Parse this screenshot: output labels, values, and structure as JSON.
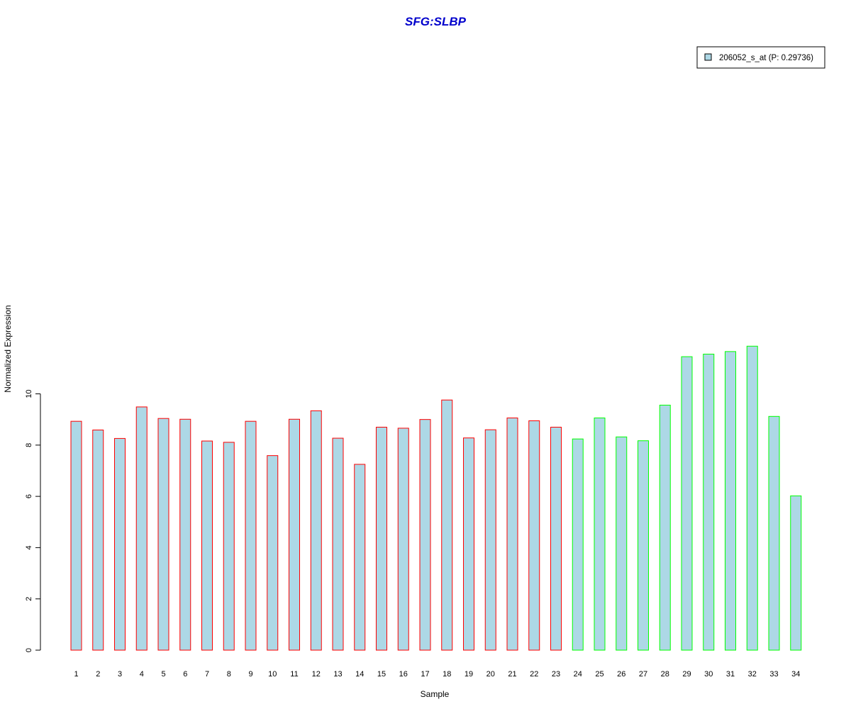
{
  "chart_data": {
    "type": "bar",
    "title": "SFG:SLBP",
    "xlabel": "Sample",
    "ylabel": "Normalized Expression",
    "ylim": [
      0,
      12
    ],
    "yticks": [
      "0",
      "2",
      "4",
      "6",
      "8",
      "10"
    ],
    "categories": [
      "1",
      "2",
      "3",
      "4",
      "5",
      "6",
      "7",
      "8",
      "9",
      "10",
      "11",
      "12",
      "13",
      "14",
      "15",
      "16",
      "17",
      "18",
      "19",
      "20",
      "21",
      "22",
      "23",
      "24",
      "25",
      "26",
      "27",
      "28",
      "29",
      "30",
      "31",
      "32",
      "33",
      "34"
    ],
    "series": [
      {
        "name": "206052_s_at (P: 0.29736)",
        "fill": "#add8e6",
        "values": [
          8.93,
          8.59,
          8.26,
          9.49,
          9.04,
          9.01,
          8.16,
          8.11,
          8.93,
          7.59,
          9.01,
          9.34,
          8.27,
          7.25,
          8.7,
          8.66,
          9.0,
          9.76,
          8.28,
          8.6,
          9.06,
          8.95,
          8.7,
          8.24,
          9.06,
          8.32,
          8.17,
          9.56,
          11.45,
          11.55,
          11.65,
          11.86,
          9.12,
          6.02
        ]
      }
    ],
    "border_colors": [
      "#ff0000",
      "#ff0000",
      "#ff0000",
      "#ff0000",
      "#ff0000",
      "#ff0000",
      "#ff0000",
      "#ff0000",
      "#ff0000",
      "#ff0000",
      "#ff0000",
      "#ff0000",
      "#ff0000",
      "#ff0000",
      "#ff0000",
      "#ff0000",
      "#ff0000",
      "#ff0000",
      "#ff0000",
      "#ff0000",
      "#ff0000",
      "#ff0000",
      "#ff0000",
      "#00ff00",
      "#00ff00",
      "#00ff00",
      "#00ff00",
      "#00ff00",
      "#00ff00",
      "#00ff00",
      "#00ff00",
      "#00ff00",
      "#00ff00",
      "#00ff00"
    ],
    "legend_position": "top-right",
    "grid": false
  }
}
